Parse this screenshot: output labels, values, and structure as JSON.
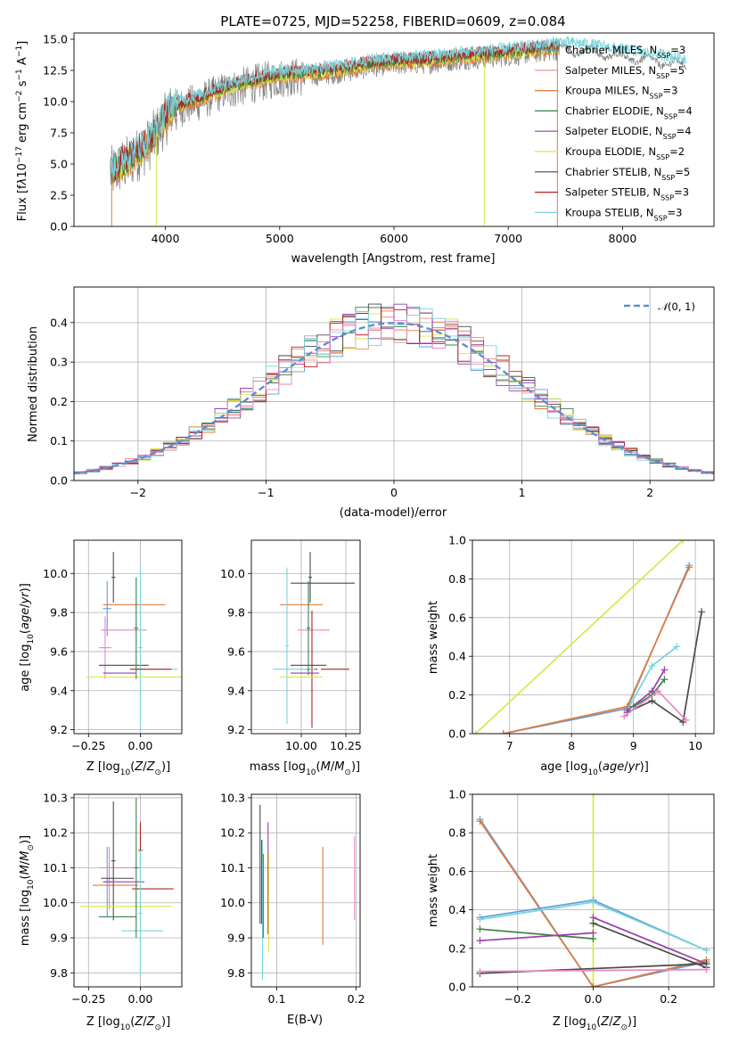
{
  "colors": {
    "chabrier_miles": "#5f9fd9",
    "salpeter_miles": "#e88b8b",
    "kroupa_miles": "#e07b39",
    "chabrier_elodie": "#3f7f4a",
    "salpeter_elodie": "#9a3fb0",
    "kroupa_elodie": "#d6e84a",
    "chabrier_stelib": "#4a4a4a",
    "salpeter_stelib": "#b22222",
    "kroupa_stelib": "#79d4dc",
    "pink": "#e987c8",
    "gauss": "#5b8fd4",
    "data": "#808080"
  },
  "chart_data": [
    {
      "id": "spectrum",
      "type": "line",
      "title": "PLATE=0725, MJD=52258, FIBERID=0609, z=0.084",
      "xlabel": "wavelength [Angstrom, rest frame]",
      "ylabel": "Flux [fλ10⁻¹⁷ erg cm⁻² s⁻¹ A⁻¹]",
      "xlim": [
        3200,
        8800
      ],
      "ylim": [
        0,
        15.5
      ],
      "xticks": [
        "4000",
        "5000",
        "6000",
        "7000",
        "8000"
      ],
      "yticks": [
        "0.0",
        "2.5",
        "5.0",
        "7.5",
        "10.0",
        "12.5",
        "15.0"
      ],
      "legend": [
        "Chabrier MILES, N_SSP=3",
        "Salpeter MILES, N_SSP=5",
        "Kroupa MILES, N_SSP=3",
        "Chabrier ELODIE, N_SSP=4",
        "Salpeter ELODIE, N_SSP=4",
        "Kroupa ELODIE, N_SSP=2",
        "Chabrier STELIB, N_SSP=5",
        "Salpeter STELIB, N_SSP=3",
        "Kroupa STELIB, N_SSP=3"
      ],
      "continuum": [
        [
          3520,
          4.2
        ],
        [
          3700,
          5.3
        ],
        [
          3850,
          6.5
        ],
        [
          3950,
          7.8
        ],
        [
          4050,
          9.3
        ],
        [
          4300,
          10.0
        ],
        [
          4500,
          10.8
        ],
        [
          4800,
          11.5
        ],
        [
          5000,
          11.9
        ],
        [
          5200,
          12.0
        ],
        [
          5500,
          12.3
        ],
        [
          5800,
          12.8
        ],
        [
          6000,
          13.0
        ],
        [
          6300,
          13.1
        ],
        [
          6600,
          13.4
        ],
        [
          6900,
          13.6
        ],
        [
          7200,
          13.9
        ],
        [
          7450,
          14.2
        ],
        [
          7700,
          14.0
        ],
        [
          8000,
          13.6
        ],
        [
          8300,
          13.2
        ],
        [
          8560,
          12.9
        ]
      ]
    },
    {
      "id": "residuals",
      "type": "bar",
      "xlabel": "(data-model)/error",
      "ylabel": "Normed distribution",
      "xlim": [
        -2.5,
        2.5
      ],
      "ylim": [
        0,
        0.49
      ],
      "xticks": [
        "−2",
        "−1",
        "0",
        "1",
        "2"
      ],
      "yticks": [
        "0.0",
        "0.1",
        "0.2",
        "0.3",
        "0.4"
      ],
      "legend": "N(0,1)",
      "bin_width": 0.1,
      "gaussian": {
        "mu": 0,
        "sigma": 1
      }
    },
    {
      "id": "age_vs_z",
      "type": "scatter",
      "xlabel": "Z [log₁₀(Z/Z⊙)]",
      "ylabel": "age  [log₁₀(age/yr)]",
      "xlim": [
        -0.32,
        0.2
      ],
      "ylim": [
        9.18,
        10.17
      ],
      "xticks": [
        "−0.25",
        "0.00"
      ],
      "yticks": [
        "9.2",
        "9.4",
        "9.6",
        "9.8",
        "10.0"
      ],
      "points": [
        {
          "x": -0.16,
          "y": 9.82,
          "xerr": 0.02,
          "yerr": 0.14,
          "s": "chabrier_miles"
        },
        {
          "x": -0.17,
          "y": 9.62,
          "xerr": 0.03,
          "yerr": 0.16,
          "s": "pink"
        },
        {
          "x": -0.08,
          "y": 9.71,
          "xerr": 0.11,
          "yerr": 0.0,
          "s": "pink"
        },
        {
          "x": -0.03,
          "y": 9.84,
          "xerr": 0.15,
          "yerr": 0.0,
          "s": "kroupa_miles"
        },
        {
          "x": -0.13,
          "y": 9.98,
          "xerr": 0.01,
          "yerr": 0.13,
          "s": "chabrier_stelib"
        },
        {
          "x": -0.08,
          "y": 9.53,
          "xerr": 0.12,
          "yerr": 0.0,
          "s": "chabrier_stelib"
        },
        {
          "x": 0.0,
          "y": 9.62,
          "xerr": 0.01,
          "yerr": 0.42,
          "s": "kroupa_stelib"
        },
        {
          "x": -0.1,
          "y": 9.49,
          "xerr": 0.08,
          "yerr": 0.0,
          "s": "salpeter_elodie"
        },
        {
          "x": -0.02,
          "y": 9.47,
          "xerr": 0.24,
          "yerr": 0.0,
          "s": "kroupa_elodie"
        },
        {
          "x": 0.08,
          "y": 9.51,
          "xerr": 0.1,
          "yerr": 0.0,
          "s": "kroupa_stelib"
        },
        {
          "x": -0.02,
          "y": 9.72,
          "xerr": 0.01,
          "yerr": 0.26,
          "s": "chabrier_elodie"
        },
        {
          "x": 0.05,
          "y": 9.51,
          "xerr": 0.1,
          "yerr": 0.0,
          "s": "salpeter_stelib"
        }
      ]
    },
    {
      "id": "age_vs_mass",
      "type": "scatter",
      "xlabel": "mass [log₁₀(M/M⊙)]",
      "xlim": [
        9.72,
        10.33
      ],
      "ylim": [
        9.18,
        10.17
      ],
      "xticks": [
        "10.00",
        "10.25"
      ],
      "yticks": [
        "9.2",
        "9.4",
        "9.6",
        "9.8",
        "10.0"
      ],
      "points": [
        {
          "x": 10.0,
          "y": 9.84,
          "xerr": 0.12,
          "yerr": 0.0,
          "s": "kroupa_miles"
        },
        {
          "x": 10.12,
          "y": 9.95,
          "xerr": 0.18,
          "yerr": 0.0,
          "s": "chabrier_stelib"
        },
        {
          "x": 10.05,
          "y": 9.98,
          "xerr": 0.01,
          "yerr": 0.13,
          "s": "chabrier_stelib"
        },
        {
          "x": 10.07,
          "y": 9.71,
          "xerr": 0.09,
          "yerr": 0.0,
          "s": "pink"
        },
        {
          "x": 9.92,
          "y": 9.63,
          "xerr": 0.01,
          "yerr": 0.4,
          "s": "kroupa_stelib"
        },
        {
          "x": 10.04,
          "y": 9.53,
          "xerr": 0.1,
          "yerr": 0.0,
          "s": "chabrier_stelib"
        },
        {
          "x": 10.06,
          "y": 9.51,
          "xerr": 0.03,
          "yerr": 0.3,
          "s": "salpeter_stelib"
        },
        {
          "x": 10.19,
          "y": 9.51,
          "xerr": 0.08,
          "yerr": 0.0,
          "s": "salpeter_stelib"
        },
        {
          "x": 10.02,
          "y": 9.49,
          "xerr": 0.08,
          "yerr": 0.0,
          "s": "salpeter_elodie"
        },
        {
          "x": 10.0,
          "y": 9.47,
          "xerr": 0.12,
          "yerr": 0.0,
          "s": "kroupa_elodie"
        },
        {
          "x": 9.96,
          "y": 9.51,
          "xerr": 0.12,
          "yerr": 0.0,
          "s": "kroupa_stelib"
        },
        {
          "x": 10.04,
          "y": 9.72,
          "xerr": 0.01,
          "yerr": 0.24,
          "s": "chabrier_elodie"
        }
      ]
    },
    {
      "id": "weight_vs_age",
      "type": "line",
      "xlabel": "age  [log₁₀(age/yr)]",
      "ylabel": "mass weight",
      "xlim": [
        6.4,
        10.3
      ],
      "ylim": [
        0,
        1
      ],
      "xticks": [
        "7",
        "8",
        "9",
        "10"
      ],
      "yticks": [
        "0.0",
        "0.2",
        "0.4",
        "0.6",
        "0.8",
        "1.0"
      ],
      "series": [
        {
          "s": "kroupa_elodie",
          "x": [
            6.45,
            9.8
          ],
          "y": [
            0.0,
            1.0
          ]
        },
        {
          "s": "chabrier_miles",
          "x": [
            6.9,
            8.9,
            9.9
          ],
          "y": [
            0.0,
            0.13,
            0.87
          ]
        },
        {
          "s": "kroupa_miles",
          "x": [
            6.9,
            8.9,
            9.9
          ],
          "y": [
            0.0,
            0.14,
            0.86
          ]
        },
        {
          "s": "chabrier_stelib",
          "x": [
            8.9,
            9.3,
            9.8,
            10.1
          ],
          "y": [
            0.11,
            0.17,
            0.06,
            0.63
          ]
        },
        {
          "s": "kroupa_stelib",
          "x": [
            8.9,
            9.3,
            9.7
          ],
          "y": [
            0.12,
            0.35,
            0.45
          ]
        },
        {
          "s": "salpeter_elodie",
          "x": [
            8.9,
            9.3,
            9.5
          ],
          "y": [
            0.12,
            0.22,
            0.33
          ]
        },
        {
          "s": "chabrier_elodie",
          "x": [
            9.0,
            9.3,
            9.5
          ],
          "y": [
            0.14,
            0.2,
            0.28
          ]
        },
        {
          "s": "pink",
          "x": [
            8.85,
            9.4,
            9.85
          ],
          "y": [
            0.09,
            0.22,
            0.07
          ]
        }
      ]
    },
    {
      "id": "mass_vs_z",
      "type": "scatter",
      "xlabel": "Z [log₁₀(Z/Z⊙)]",
      "ylabel": "mass [log₁₀(M/M⊙)]",
      "xlim": [
        -0.32,
        0.2
      ],
      "ylim": [
        9.76,
        10.31
      ],
      "xticks": [
        "−0.25",
        "0.00"
      ],
      "yticks": [
        "9.8",
        "9.9",
        "10.0",
        "10.1",
        "10.2",
        "10.3"
      ],
      "points": [
        {
          "x": -0.16,
          "y": 10.06,
          "xerr": 0.02,
          "yerr": 0.1,
          "s": "chabrier_miles"
        },
        {
          "x": -0.15,
          "y": 10.07,
          "xerr": 0.02,
          "yerr": 0.09,
          "s": "pink"
        },
        {
          "x": -0.1,
          "y": 10.1,
          "xerr": 0.1,
          "yerr": 0.0,
          "s": "pink"
        },
        {
          "x": -0.12,
          "y": 10.05,
          "xerr": 0.11,
          "yerr": 0.0,
          "s": "kroupa_miles"
        },
        {
          "x": -0.13,
          "y": 10.12,
          "xerr": 0.01,
          "yerr": 0.17,
          "s": "chabrier_stelib"
        },
        {
          "x": -0.11,
          "y": 10.07,
          "xerr": 0.08,
          "yerr": 0.0,
          "s": "chabrier_stelib"
        },
        {
          "x": -0.11,
          "y": 9.96,
          "xerr": 0.09,
          "yerr": 0.0,
          "s": "chabrier_elodie"
        },
        {
          "x": 0.0,
          "y": 10.15,
          "xerr": 0.01,
          "yerr": 0.08,
          "s": "salpeter_stelib"
        },
        {
          "x": 0.06,
          "y": 10.04,
          "xerr": 0.1,
          "yerr": 0.0,
          "s": "salpeter_stelib"
        },
        {
          "x": -0.08,
          "y": 10.06,
          "xerr": 0.1,
          "yerr": 0.0,
          "s": "salpeter_elodie"
        },
        {
          "x": -0.07,
          "y": 9.99,
          "xerr": 0.22,
          "yerr": 0.0,
          "s": "kroupa_elodie"
        },
        {
          "x": 0.01,
          "y": 9.92,
          "xerr": 0.1,
          "yerr": 0.0,
          "s": "kroupa_stelib"
        },
        {
          "x": 0.0,
          "y": 9.97,
          "xerr": 0.01,
          "yerr": 0.18,
          "s": "kroupa_stelib"
        },
        {
          "x": -0.02,
          "y": 10.1,
          "xerr": 0.01,
          "yerr": 0.2,
          "s": "chabrier_elodie"
        }
      ]
    },
    {
      "id": "mass_vs_ebv",
      "type": "scatter",
      "xlabel": "E(B-V)",
      "xlim": [
        0.068,
        0.205
      ],
      "ylim": [
        9.76,
        10.31
      ],
      "xticks": [
        "0.1",
        "0.2"
      ],
      "yticks": [
        "9.8",
        "9.9",
        "10.0",
        "10.1",
        "10.2",
        "10.3"
      ],
      "points": [
        {
          "x": 0.079,
          "y": 10.11,
          "xerr": 0.0,
          "yerr": 0.17,
          "s": "chabrier_stelib"
        },
        {
          "x": 0.081,
          "y": 10.06,
          "xerr": 0.0,
          "yerr": 0.12,
          "s": "salpeter_stelib"
        },
        {
          "x": 0.082,
          "y": 9.98,
          "xerr": 0.0,
          "yerr": 0.2,
          "s": "kroupa_stelib"
        },
        {
          "x": 0.083,
          "y": 10.02,
          "xerr": 0.0,
          "yerr": 0.12,
          "s": "chabrier_elodie"
        },
        {
          "x": 0.089,
          "y": 10.07,
          "xerr": 0.0,
          "yerr": 0.16,
          "s": "salpeter_elodie"
        },
        {
          "x": 0.09,
          "y": 10.0,
          "xerr": 0.0,
          "yerr": 0.14,
          "s": "kroupa_elodie"
        },
        {
          "x": 0.158,
          "y": 10.02,
          "xerr": 0.0,
          "yerr": 0.14,
          "s": "kroupa_miles"
        },
        {
          "x": 0.198,
          "y": 10.07,
          "xerr": 0.0,
          "yerr": 0.12,
          "s": "pink"
        }
      ]
    },
    {
      "id": "weight_vs_z",
      "type": "line",
      "xlabel": "Z [log₁₀(Z/Z⊙)]",
      "ylabel": "mass weight",
      "xlim": [
        -0.32,
        0.32
      ],
      "ylim": [
        0,
        1
      ],
      "xticks": [
        "−0.2",
        "0.0",
        "0.2"
      ],
      "yticks": [
        "0.0",
        "0.2",
        "0.4",
        "0.6",
        "0.8",
        "1.0"
      ],
      "series": [
        {
          "s": "kroupa_elodie",
          "x": [
            0.0,
            0.0
          ],
          "y": [
            0.0,
            1.0
          ]
        },
        {
          "s": "chabrier_miles",
          "x": [
            -0.3,
            0.0,
            0.3
          ],
          "y": [
            0.87,
            0.0,
            0.13
          ]
        },
        {
          "s": "kroupa_miles",
          "x": [
            -0.3,
            0.0,
            0.3
          ],
          "y": [
            0.86,
            0.0,
            0.14
          ]
        },
        {
          "s": "chabrier_miles",
          "x": [
            -0.3,
            0.0,
            0.3
          ],
          "y": [
            0.36,
            0.45,
            0.19
          ]
        },
        {
          "s": "kroupa_stelib",
          "x": [
            -0.3,
            0.0,
            0.3
          ],
          "y": [
            0.35,
            0.44,
            0.19
          ]
        },
        {
          "s": "chabrier_elodie",
          "x": [
            -0.3,
            0.0
          ],
          "y": [
            0.3,
            0.25
          ]
        },
        {
          "s": "salpeter_elodie",
          "x": [
            -0.3,
            0.0
          ],
          "y": [
            0.24,
            0.28
          ]
        },
        {
          "s": "salpeter_elodie",
          "x": [
            0.0,
            0.3
          ],
          "y": [
            0.36,
            0.12
          ]
        },
        {
          "s": "chabrier_stelib",
          "x": [
            -0.3,
            0.3
          ],
          "y": [
            0.07,
            0.12
          ]
        },
        {
          "s": "chabrier_stelib",
          "x": [
            0.0,
            0.3
          ],
          "y": [
            0.33,
            0.1
          ]
        },
        {
          "s": "pink",
          "x": [
            -0.3,
            0.3
          ],
          "y": [
            0.08,
            0.09
          ]
        }
      ]
    }
  ]
}
